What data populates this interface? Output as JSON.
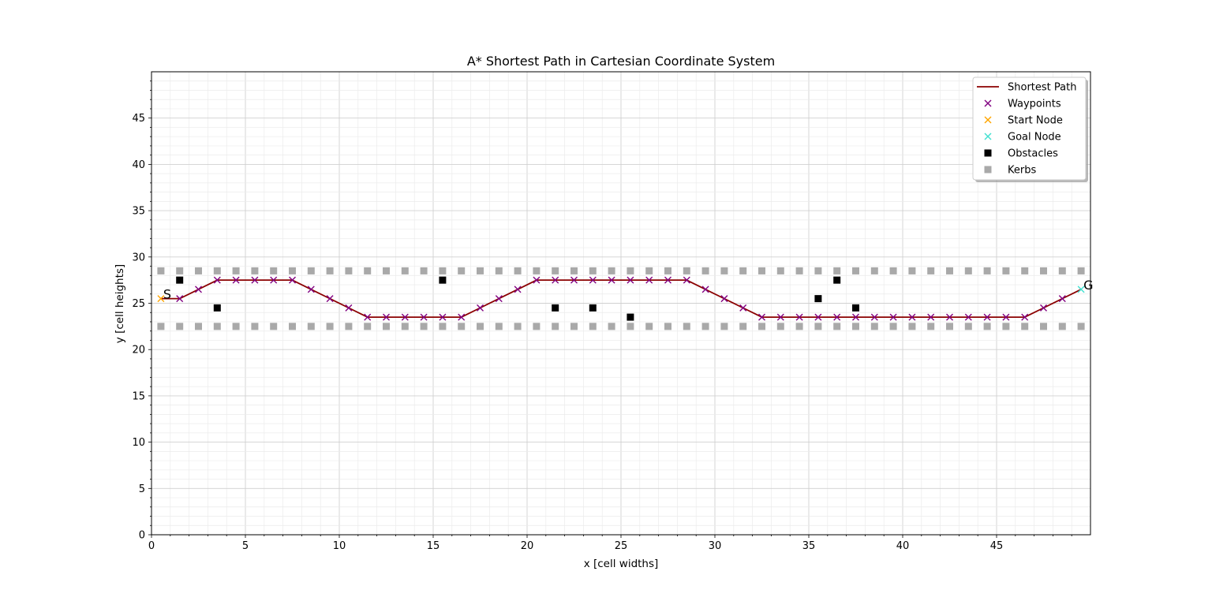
{
  "chart_data": {
    "type": "scatter",
    "title": "A* Shortest Path in Cartesian Coordinate System",
    "xlabel": "x [cell widths]",
    "ylabel": "y [cell heights]",
    "xlim": [
      0,
      50
    ],
    "ylim": [
      0,
      50
    ],
    "xticks": [
      0,
      5,
      10,
      15,
      20,
      25,
      30,
      35,
      40,
      45
    ],
    "yticks": [
      0,
      5,
      10,
      15,
      20,
      25,
      30,
      35,
      40,
      45
    ],
    "grid": true,
    "minor_grid": true,
    "legend_position": "top-right",
    "series": [
      {
        "name": "Shortest Path",
        "kind": "line",
        "color": "#8b0000",
        "points": [
          [
            0.5,
            25.5
          ],
          [
            1.5,
            25.5
          ],
          [
            2.5,
            26.5
          ],
          [
            3.5,
            27.5
          ],
          [
            4.5,
            27.5
          ],
          [
            5.5,
            27.5
          ],
          [
            6.5,
            27.5
          ],
          [
            7.5,
            27.5
          ],
          [
            8.5,
            26.5
          ],
          [
            9.5,
            25.5
          ],
          [
            10.5,
            24.5
          ],
          [
            11.5,
            23.5
          ],
          [
            12.5,
            23.5
          ],
          [
            13.5,
            23.5
          ],
          [
            14.5,
            23.5
          ],
          [
            15.5,
            23.5
          ],
          [
            16.5,
            23.5
          ],
          [
            17.5,
            24.5
          ],
          [
            18.5,
            25.5
          ],
          [
            19.5,
            26.5
          ],
          [
            20.5,
            27.5
          ],
          [
            21.5,
            27.5
          ],
          [
            22.5,
            27.5
          ],
          [
            23.5,
            27.5
          ],
          [
            24.5,
            27.5
          ],
          [
            25.5,
            27.5
          ],
          [
            26.5,
            27.5
          ],
          [
            27.5,
            27.5
          ],
          [
            28.5,
            27.5
          ],
          [
            29.5,
            26.5
          ],
          [
            30.5,
            25.5
          ],
          [
            31.5,
            24.5
          ],
          [
            32.5,
            23.5
          ],
          [
            33.5,
            23.5
          ],
          [
            34.5,
            23.5
          ],
          [
            35.5,
            23.5
          ],
          [
            36.5,
            23.5
          ],
          [
            37.5,
            23.5
          ],
          [
            38.5,
            23.5
          ],
          [
            39.5,
            23.5
          ],
          [
            40.5,
            23.5
          ],
          [
            41.5,
            23.5
          ],
          [
            42.5,
            23.5
          ],
          [
            43.5,
            23.5
          ],
          [
            44.5,
            23.5
          ],
          [
            45.5,
            23.5
          ],
          [
            46.5,
            23.5
          ],
          [
            47.5,
            24.5
          ],
          [
            48.5,
            25.5
          ],
          [
            49.5,
            26.5
          ]
        ]
      },
      {
        "name": "Waypoints",
        "kind": "x-marker",
        "color": "#800080",
        "points": [
          [
            1.5,
            25.5
          ],
          [
            2.5,
            26.5
          ],
          [
            3.5,
            27.5
          ],
          [
            4.5,
            27.5
          ],
          [
            5.5,
            27.5
          ],
          [
            6.5,
            27.5
          ],
          [
            7.5,
            27.5
          ],
          [
            8.5,
            26.5
          ],
          [
            9.5,
            25.5
          ],
          [
            10.5,
            24.5
          ],
          [
            11.5,
            23.5
          ],
          [
            12.5,
            23.5
          ],
          [
            13.5,
            23.5
          ],
          [
            14.5,
            23.5
          ],
          [
            15.5,
            23.5
          ],
          [
            16.5,
            23.5
          ],
          [
            17.5,
            24.5
          ],
          [
            18.5,
            25.5
          ],
          [
            19.5,
            26.5
          ],
          [
            20.5,
            27.5
          ],
          [
            21.5,
            27.5
          ],
          [
            22.5,
            27.5
          ],
          [
            23.5,
            27.5
          ],
          [
            24.5,
            27.5
          ],
          [
            25.5,
            27.5
          ],
          [
            26.5,
            27.5
          ],
          [
            27.5,
            27.5
          ],
          [
            28.5,
            27.5
          ],
          [
            29.5,
            26.5
          ],
          [
            30.5,
            25.5
          ],
          [
            31.5,
            24.5
          ],
          [
            32.5,
            23.5
          ],
          [
            33.5,
            23.5
          ],
          [
            34.5,
            23.5
          ],
          [
            35.5,
            23.5
          ],
          [
            36.5,
            23.5
          ],
          [
            37.5,
            23.5
          ],
          [
            38.5,
            23.5
          ],
          [
            39.5,
            23.5
          ],
          [
            40.5,
            23.5
          ],
          [
            41.5,
            23.5
          ],
          [
            42.5,
            23.5
          ],
          [
            43.5,
            23.5
          ],
          [
            44.5,
            23.5
          ],
          [
            45.5,
            23.5
          ],
          [
            46.5,
            23.5
          ],
          [
            47.5,
            24.5
          ],
          [
            48.5,
            25.5
          ]
        ]
      },
      {
        "name": "Start Node",
        "kind": "x-marker",
        "color": "#ffa500",
        "points": [
          [
            0.5,
            25.5
          ]
        ]
      },
      {
        "name": "Goal Node",
        "kind": "x-marker",
        "color": "#40e0d0",
        "points": [
          [
            49.5,
            26.5
          ]
        ]
      },
      {
        "name": "Obstacles",
        "kind": "square-marker",
        "color": "#000000",
        "points": [
          [
            1.5,
            27.5
          ],
          [
            3.5,
            24.5
          ],
          [
            15.5,
            27.5
          ],
          [
            21.5,
            24.5
          ],
          [
            23.5,
            24.5
          ],
          [
            25.5,
            23.5
          ],
          [
            35.5,
            25.5
          ],
          [
            36.5,
            27.5
          ],
          [
            37.5,
            24.5
          ]
        ]
      },
      {
        "name": "Kerbs",
        "kind": "square-marker",
        "color": "#a9a9a9",
        "rows_y": [
          28.5,
          22.5
        ],
        "x_values": [
          0.5,
          1.5,
          2.5,
          3.5,
          4.5,
          5.5,
          6.5,
          7.5,
          8.5,
          9.5,
          10.5,
          11.5,
          12.5,
          13.5,
          14.5,
          15.5,
          16.5,
          17.5,
          18.5,
          19.5,
          20.5,
          21.5,
          22.5,
          23.5,
          24.5,
          25.5,
          26.5,
          27.5,
          28.5,
          29.5,
          30.5,
          31.5,
          32.5,
          33.5,
          34.5,
          35.5,
          36.5,
          37.5,
          38.5,
          39.5,
          40.5,
          41.5,
          42.5,
          43.5,
          44.5,
          45.5,
          46.5,
          47.5,
          48.5,
          49.5
        ]
      }
    ],
    "annotations": [
      {
        "text": "S",
        "x": 0.5,
        "y": 25.5
      },
      {
        "text": "G",
        "x": 49.5,
        "y": 26.5
      }
    ]
  }
}
